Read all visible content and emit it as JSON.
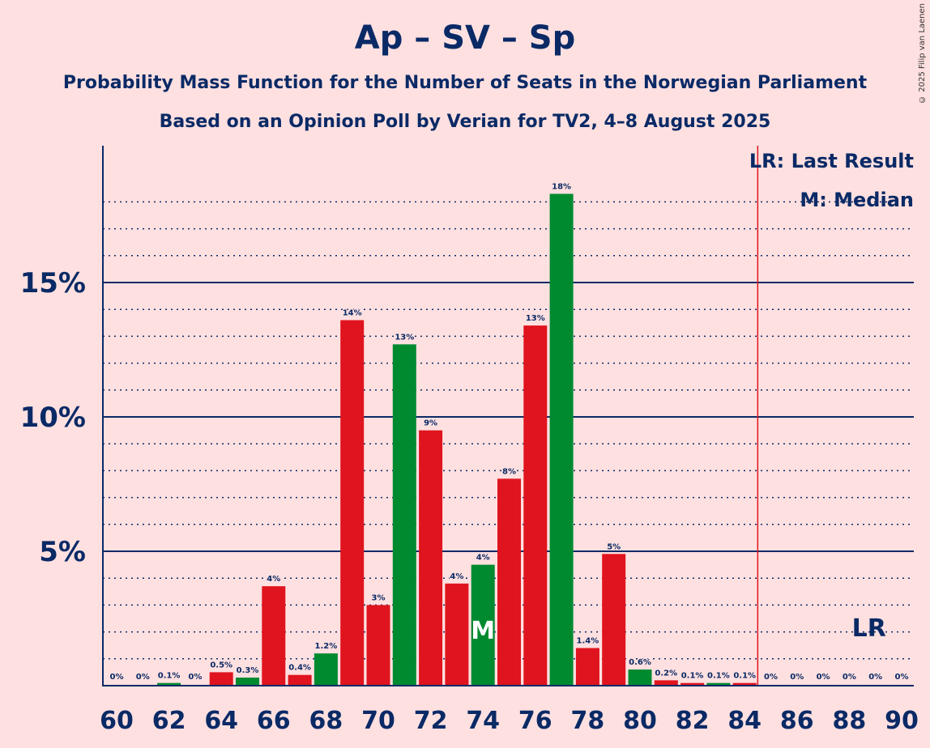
{
  "title": "Ap – SV – Sp",
  "subtitle1": "Probability Mass Function for the Number of Seats in the Norwegian Parliament",
  "subtitle2": "Based on an Opinion Poll by Verian for TV2, 4–8 August 2025",
  "copyright": "© 2025 Filip van Laenen",
  "legend": {
    "lr": "LR: Last Result",
    "m": "M: Median"
  },
  "colors": {
    "red": "#e0141e",
    "green": "#008a30",
    "axis": "#0a2a66",
    "lr_line": "#e0141e"
  },
  "chart_data": {
    "type": "bar",
    "xlabel": "",
    "ylabel": "",
    "ylim": [
      0,
      20
    ],
    "grid": true,
    "x_tick_labels": [
      "60",
      "62",
      "64",
      "66",
      "68",
      "70",
      "72",
      "74",
      "76",
      "78",
      "80",
      "82",
      "84",
      "86",
      "88",
      "90"
    ],
    "y_tick_labels": [
      "5%",
      "10%",
      "15%"
    ],
    "median": 74,
    "median_label": "M",
    "last_result": 89,
    "last_result_label": "LR",
    "bars": [
      {
        "seats": 60,
        "value": 0,
        "label": "0%",
        "color": "red"
      },
      {
        "seats": 61,
        "value": 0,
        "label": "0%",
        "color": "red"
      },
      {
        "seats": 62,
        "value": 0.1,
        "label": "0.1%",
        "color": "green"
      },
      {
        "seats": 63,
        "value": 0,
        "label": "0%",
        "color": "red"
      },
      {
        "seats": 64,
        "value": 0.5,
        "label": "0.5%",
        "color": "red"
      },
      {
        "seats": 65,
        "value": 0.3,
        "label": "0.3%",
        "color": "green"
      },
      {
        "seats": 66,
        "value": 3.7,
        "label": "4%",
        "color": "red"
      },
      {
        "seats": 67,
        "value": 0.4,
        "label": "0.4%",
        "color": "red"
      },
      {
        "seats": 68,
        "value": 1.2,
        "label": "1.2%",
        "color": "green"
      },
      {
        "seats": 69,
        "value": 13.6,
        "label": "14%",
        "color": "red"
      },
      {
        "seats": 70,
        "value": 3.0,
        "label": "3%",
        "color": "red"
      },
      {
        "seats": 71,
        "value": 12.7,
        "label": "13%",
        "color": "green"
      },
      {
        "seats": 72,
        "value": 9.5,
        "label": "9%",
        "color": "red"
      },
      {
        "seats": 73,
        "value": 3.8,
        "label": "4%",
        "color": "red"
      },
      {
        "seats": 74,
        "value": 4.5,
        "label": "4%",
        "color": "green"
      },
      {
        "seats": 75,
        "value": 7.7,
        "label": "8%",
        "color": "red"
      },
      {
        "seats": 76,
        "value": 13.4,
        "label": "13%",
        "color": "red"
      },
      {
        "seats": 77,
        "value": 18.3,
        "label": "18%",
        "color": "green"
      },
      {
        "seats": 78,
        "value": 1.4,
        "label": "1.4%",
        "color": "red"
      },
      {
        "seats": 79,
        "value": 4.9,
        "label": "5%",
        "color": "red"
      },
      {
        "seats": 80,
        "value": 0.6,
        "label": "0.6%",
        "color": "green"
      },
      {
        "seats": 81,
        "value": 0.2,
        "label": "0.2%",
        "color": "red"
      },
      {
        "seats": 82,
        "value": 0.1,
        "label": "0.1%",
        "color": "red"
      },
      {
        "seats": 83,
        "value": 0.1,
        "label": "0.1%",
        "color": "green"
      },
      {
        "seats": 84,
        "value": 0.1,
        "label": "0.1%",
        "color": "red"
      },
      {
        "seats": 85,
        "value": 0,
        "label": "0%",
        "color": "red"
      },
      {
        "seats": 86,
        "value": 0,
        "label": "0%",
        "color": "green"
      },
      {
        "seats": 87,
        "value": 0,
        "label": "0%",
        "color": "red"
      },
      {
        "seats": 88,
        "value": 0,
        "label": "0%",
        "color": "red"
      },
      {
        "seats": 89,
        "value": 0,
        "label": "0%",
        "color": "green"
      },
      {
        "seats": 90,
        "value": 0,
        "label": "0%",
        "color": "red"
      }
    ]
  }
}
